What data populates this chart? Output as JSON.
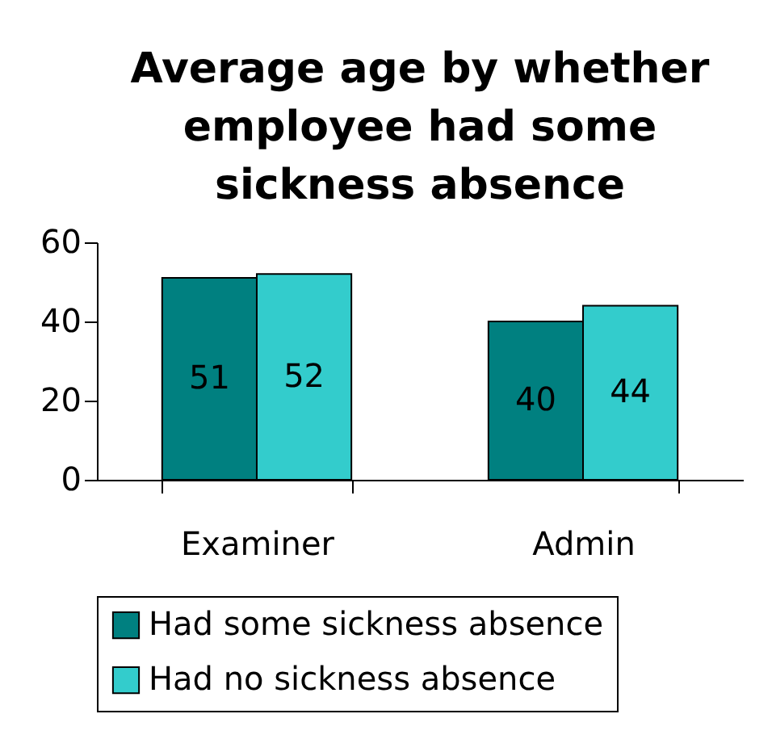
{
  "chart_data": {
    "type": "bar",
    "title": "Average age by whether employee had some sickness absence",
    "categories": [
      "Examiner",
      "Admin"
    ],
    "series": [
      {
        "name": "Had some sickness absence",
        "color": "#008080",
        "values": [
          51,
          40
        ]
      },
      {
        "name": "Had no sickness absence",
        "color": "#33cccc",
        "values": [
          52,
          44
        ]
      }
    ],
    "ylim": [
      0,
      60
    ],
    "yticks": [
      0,
      20,
      40,
      60
    ],
    "grid": false,
    "legend": "bottom",
    "data_labels": true
  }
}
